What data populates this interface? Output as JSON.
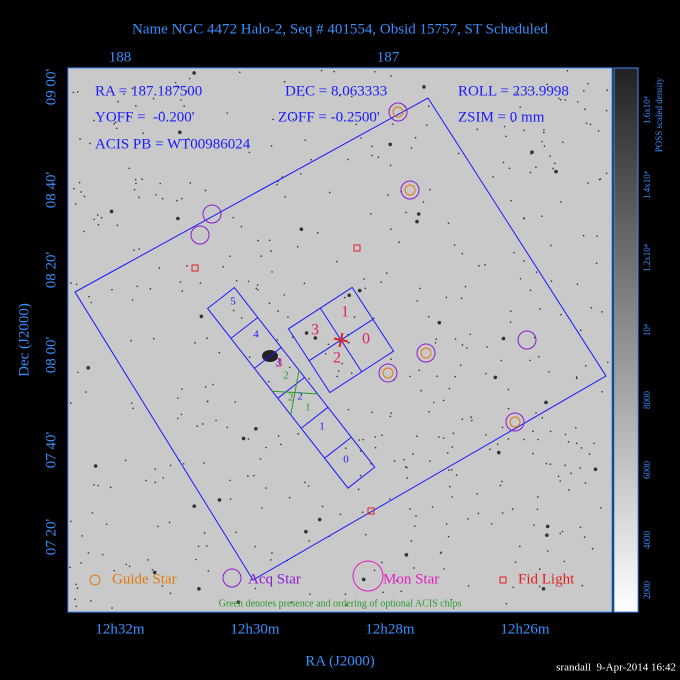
{
  "header": {
    "title": "Name NGC 4472 Halo-2, Seq # 401554, Obsid 15757, ST Scheduled"
  },
  "top_ticks": [
    "188",
    "187"
  ],
  "left_ticks": [
    "09 00'",
    "08 40'",
    "08 20'",
    "08 00'",
    "07 40'",
    "07 20'"
  ],
  "bottom_ticks": [
    "12h32m",
    "12h30m",
    "12h28m",
    "12h26m"
  ],
  "x_label": "RA (J2000)",
  "y_label": "Dec (J2000)",
  "info": {
    "ra": "RA = 187.187500",
    "dec": "DEC = 8.063333",
    "roll": "ROLL = 233.9998",
    "yoff": "YOFF =  -0.200'",
    "zoff": "ZOFF = -0.2500'",
    "zsim": "ZSIM = 0 mm",
    "acis_pb": "ACIS PB = WT00986024"
  },
  "acis_chips": [
    "5",
    "4",
    "3",
    "2",
    "1",
    "0"
  ],
  "acis_i_chips": [
    "1",
    "3",
    "0",
    "2"
  ],
  "optional_chips": [
    "3",
    "2",
    "2",
    "1"
  ],
  "legend": [
    "Guide Star",
    "Acq Star",
    "Mon Star",
    "Fid Light"
  ],
  "note": "Green denotes presence and ordering of optional ACIS chips",
  "colorbar": {
    "label": "POSS scaled density",
    "ticks": [
      "1.6x10⁴",
      "1.4x10⁴",
      "1.2x10⁴",
      "10⁴",
      "8000",
      "6000",
      "4000",
      "2000"
    ]
  },
  "footer": "srandall  9-Apr-2014 16:42"
}
